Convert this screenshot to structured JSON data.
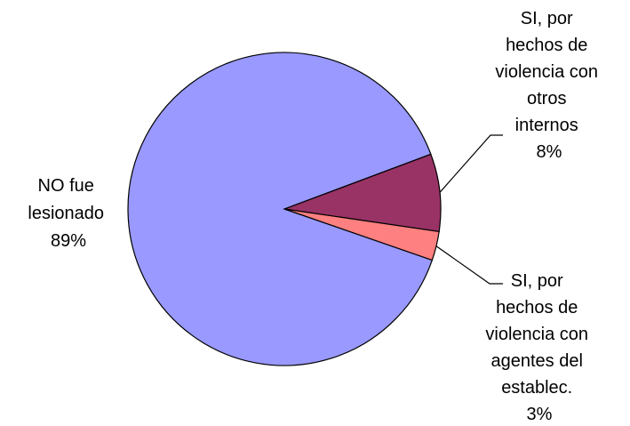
{
  "chart_data": {
    "type": "pie",
    "title": "",
    "start_angle_deg": 5,
    "direction": "clockwise-from-start",
    "slices": [
      {
        "label_lines": [
          "SI, por",
          "hechos de",
          "violencia con",
          "otros",
          "internos",
          "8%"
        ],
        "value": 8,
        "color": "#993366"
      },
      {
        "label_lines": [
          "SI, por",
          "hechos de",
          "violencia con",
          "agentes del",
          "establec.",
          "3%"
        ],
        "value": 3,
        "color": "#FF8080"
      },
      {
        "label_lines": [
          "NO fue",
          "lesionado",
          "89%"
        ],
        "value": 89,
        "color": "#9999FF"
      }
    ]
  }
}
